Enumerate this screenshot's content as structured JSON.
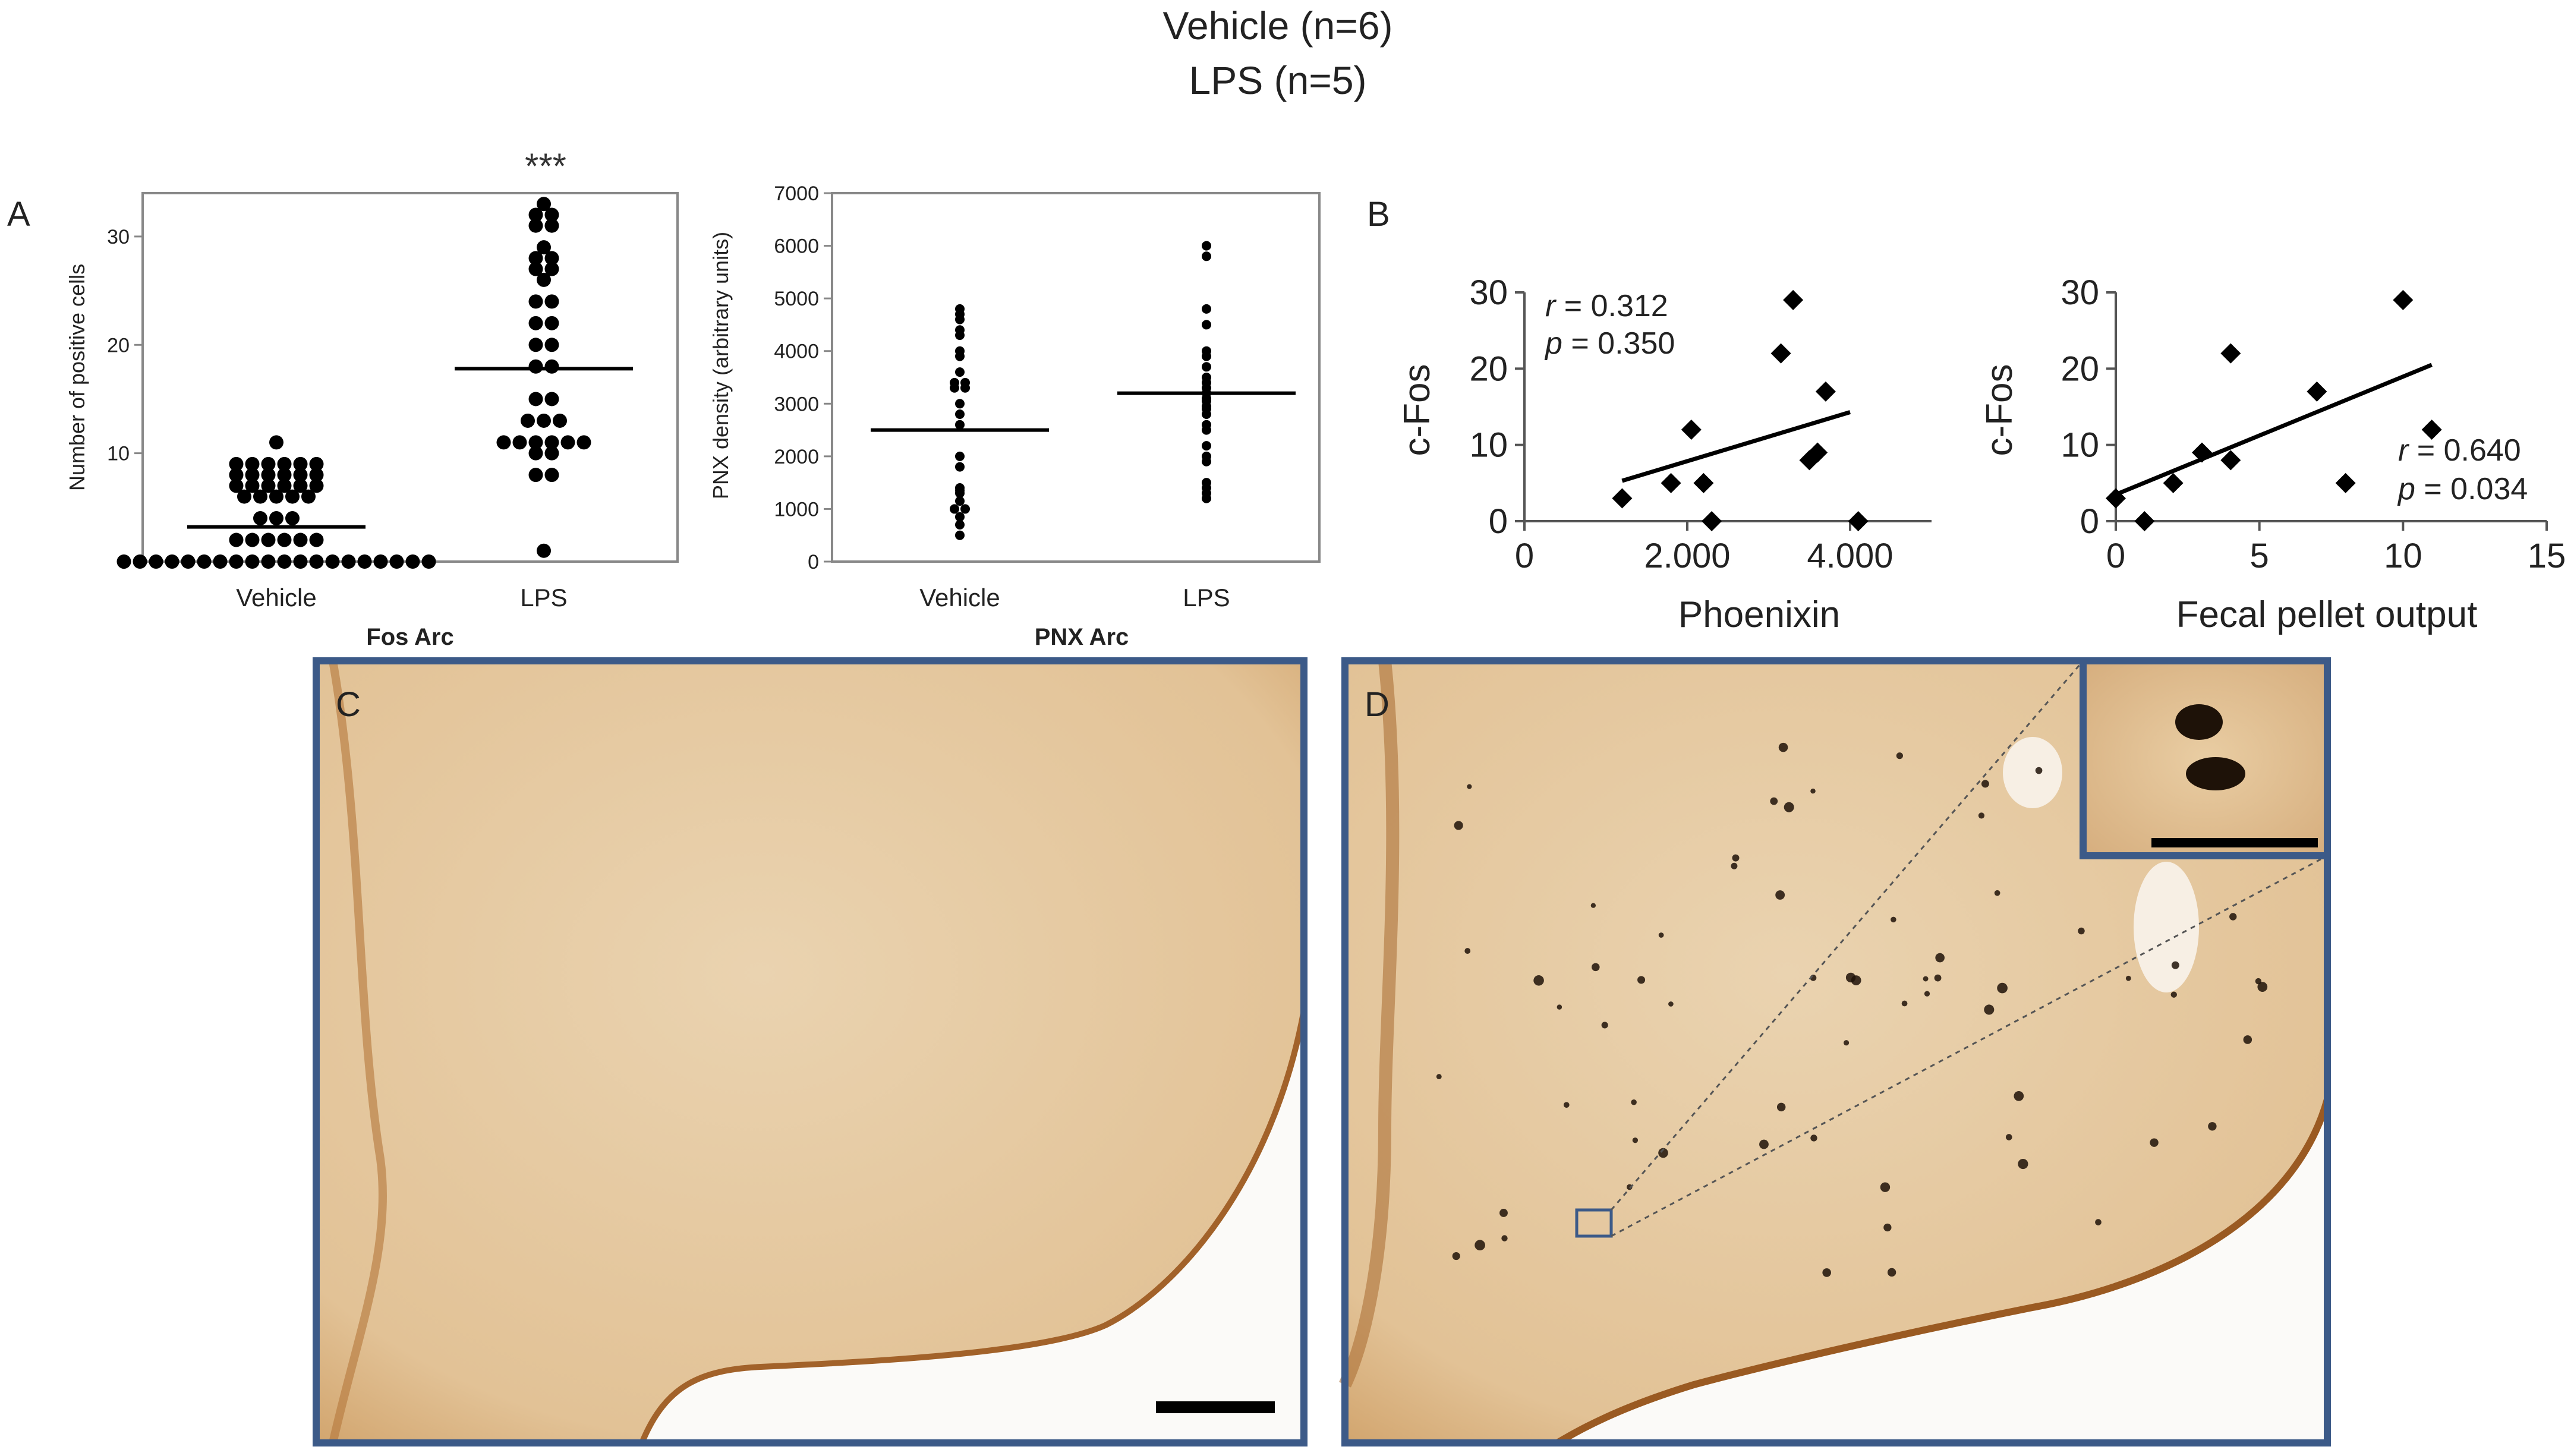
{
  "figure": {
    "legend_line1": "Vehicle (n=6)",
    "legend_line2": "LPS (n=5)",
    "panel_labels": {
      "a": "A",
      "b": "B",
      "c": "C",
      "d": "D"
    },
    "significance": "***"
  },
  "colors": {
    "frame": "#3c5a88",
    "tissue_base": "#e6cba3",
    "tissue_edge": "#9a5a22",
    "stain_dark": "#1e1208",
    "marker": "#000000"
  },
  "chart_data": [
    {
      "id": "fos_arc",
      "type": "scatter",
      "subtype": "dot-plot",
      "xlabel": "Fos Arc",
      "ylabel": "Number of positive cells",
      "categories": [
        "Vehicle",
        "LPS"
      ],
      "ylim": [
        0,
        34
      ],
      "yticks": [
        0,
        10,
        20,
        30
      ],
      "series": [
        {
          "category": "Vehicle",
          "mean": 3.2,
          "values": [
            0,
            0,
            0,
            0,
            0,
            0,
            0,
            0,
            0,
            0,
            0,
            0,
            0,
            0,
            0,
            0,
            0,
            0,
            0,
            0,
            2,
            2,
            2,
            2,
            2,
            2,
            4,
            4,
            4,
            6,
            6,
            6,
            6,
            6,
            7,
            7,
            7,
            7,
            7,
            7,
            8,
            8,
            8,
            8,
            8,
            8,
            9,
            9,
            9,
            9,
            9,
            9,
            11
          ]
        },
        {
          "category": "LPS",
          "mean": 17.8,
          "values": [
            1,
            8,
            8,
            10,
            10,
            11,
            11,
            11,
            11,
            11,
            11,
            13,
            13,
            13,
            15,
            15,
            18,
            18,
            20,
            20,
            22,
            22,
            24,
            24,
            26,
            27,
            27,
            28,
            28,
            29,
            31,
            31,
            32,
            32,
            33
          ]
        }
      ]
    },
    {
      "id": "pnx_arc",
      "type": "scatter",
      "subtype": "dot-plot",
      "xlabel": "PNX Arc",
      "ylabel": "PNX density (arbitrary units)",
      "categories": [
        "Vehicle",
        "LPS"
      ],
      "ylim": [
        0,
        7000
      ],
      "yticks": [
        0,
        1000,
        2000,
        3000,
        4000,
        5000,
        6000,
        7000
      ],
      "series": [
        {
          "category": "Vehicle",
          "mean": 2500,
          "values": [
            500,
            700,
            850,
            1000,
            1000,
            1150,
            1300,
            1350,
            1400,
            1800,
            2000,
            2600,
            2800,
            3000,
            3300,
            3300,
            3400,
            3400,
            3600,
            3900,
            4000,
            4300,
            4400,
            4600,
            4700,
            4800
          ]
        },
        {
          "category": "LPS",
          "mean": 3200,
          "values": [
            1200,
            1300,
            1400,
            1500,
            1900,
            2000,
            2200,
            2500,
            2600,
            2800,
            2900,
            2950,
            3050,
            3100,
            3200,
            3300,
            3400,
            3500,
            3700,
            3900,
            4000,
            4500,
            4800,
            5800,
            6000
          ]
        }
      ]
    },
    {
      "id": "corr_phoenixin",
      "type": "scatter",
      "xlabel": "Phoenixin",
      "ylabel": "c-Fos",
      "xlim": [
        0,
        5000
      ],
      "ylim": [
        0,
        30
      ],
      "xticks": [
        0,
        2000,
        4000
      ],
      "xtick_labels": [
        "0",
        "2.000",
        "4.000"
      ],
      "yticks": [
        0,
        10,
        20,
        30
      ],
      "stats": {
        "r_label": "r",
        "r_value": " = 0.312",
        "p_label": "p",
        "p_value": " = 0.350"
      },
      "points": [
        [
          1200,
          3
        ],
        [
          1800,
          5
        ],
        [
          2050,
          12
        ],
        [
          2200,
          5
        ],
        [
          2300,
          0
        ],
        [
          3150,
          22
        ],
        [
          3300,
          29
        ],
        [
          3500,
          8
        ],
        [
          3600,
          9
        ],
        [
          3700,
          17
        ],
        [
          4100,
          0
        ]
      ],
      "fit": [
        [
          1200,
          5.3
        ],
        [
          4000,
          14.3
        ]
      ]
    },
    {
      "id": "corr_fecal",
      "type": "scatter",
      "xlabel": "Fecal pellet output",
      "ylabel": "c-Fos",
      "xlim": [
        0,
        15
      ],
      "ylim": [
        0,
        30
      ],
      "xticks": [
        0,
        5,
        10,
        15
      ],
      "yticks": [
        0,
        10,
        20,
        30
      ],
      "stats": {
        "r_label": "r",
        "r_value": " = 0.640",
        "p_label": "p",
        "p_value": " = 0.034"
      },
      "points": [
        [
          0,
          3
        ],
        [
          1,
          0
        ],
        [
          2,
          5
        ],
        [
          3,
          9
        ],
        [
          4,
          8
        ],
        [
          4,
          22
        ],
        [
          7,
          17
        ],
        [
          8,
          5
        ],
        [
          10,
          29
        ],
        [
          11,
          12
        ]
      ],
      "fit": [
        [
          0,
          3.5
        ],
        [
          11,
          20.5
        ]
      ]
    }
  ]
}
